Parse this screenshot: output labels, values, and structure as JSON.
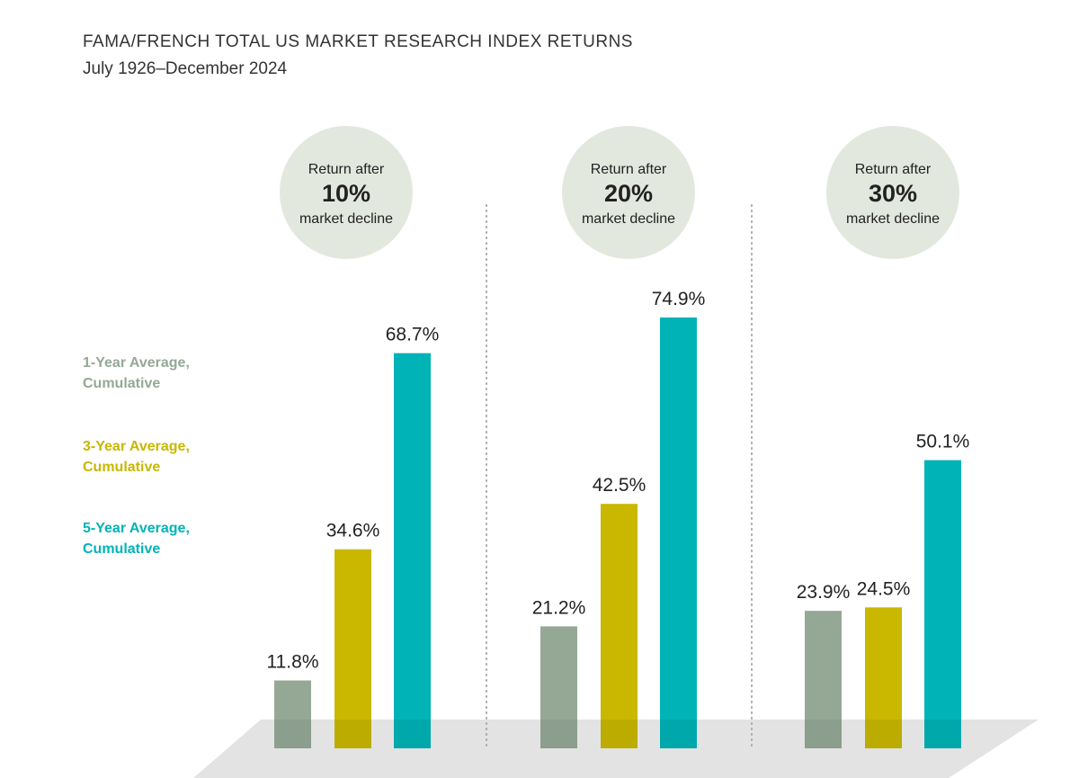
{
  "header": {
    "title": "FAMA/FRENCH TOTAL US MARKET RESEARCH INDEX RETURNS",
    "subtitle": "July 1926–December 2024"
  },
  "colors": {
    "one_year": "#95a896",
    "three_year": "#c9b700",
    "five_year": "#00b3b7",
    "circle": "#e3e8df",
    "floor": "#e3e3e3",
    "divider": "#a9a9a9"
  },
  "legend": [
    {
      "line1": "1-Year Average,",
      "line2": "Cumulative",
      "color": "#95a896"
    },
    {
      "line1": "3-Year Average,",
      "line2": "Cumulative",
      "color": "#c9b700"
    },
    {
      "line1": "5-Year Average,",
      "line2": "Cumulative",
      "color": "#00b3b7"
    }
  ],
  "chart_data": {
    "type": "bar",
    "title": "FAMA/FRENCH TOTAL US MARKET RESEARCH INDEX RETURNS",
    "subtitle": "July 1926–December 2024",
    "categories": [
      {
        "line1": "Return after",
        "line2": "10%",
        "line3": "market decline"
      },
      {
        "line1": "Return after",
        "line2": "20%",
        "line3": "market decline"
      },
      {
        "line1": "Return after",
        "line2": "30%",
        "line3": "market decline"
      }
    ],
    "series": [
      {
        "name": "1-Year Average, Cumulative",
        "values": [
          11.8,
          21.2,
          23.9
        ],
        "labels": [
          "11.8%",
          "21.2%",
          "23.9%"
        ]
      },
      {
        "name": "3-Year Average, Cumulative",
        "values": [
          34.6,
          42.5,
          24.5
        ],
        "labels": [
          "34.6%",
          "42.5%",
          "24.5%"
        ]
      },
      {
        "name": "5-Year Average, Cumulative",
        "values": [
          68.7,
          74.9,
          50.1
        ],
        "labels": [
          "68.7%",
          "74.9%",
          "50.1%"
        ]
      }
    ],
    "xlabel": "",
    "ylabel": "",
    "ylim": [
      0,
      80
    ],
    "grid": false,
    "legend_position": "left"
  }
}
